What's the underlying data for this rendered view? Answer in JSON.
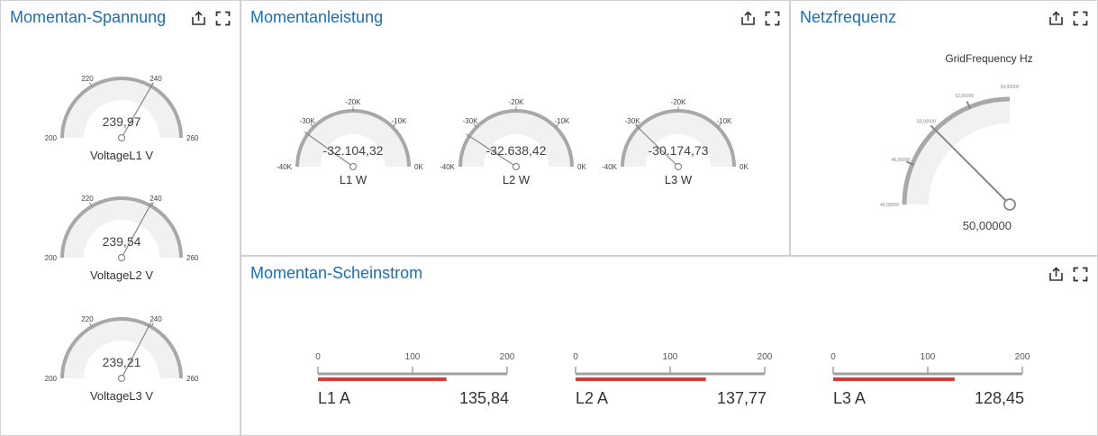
{
  "theme": {
    "title_color": "#1b6fb5",
    "gauge_track": "#f1f1f1",
    "gauge_ring": "#a8a8a8",
    "needle": "#888888",
    "bar_track": "#a0a0a0",
    "bar_value": "#e53535"
  },
  "icons": {
    "export": "export-icon",
    "fullscreen": "fullscreen-icon"
  },
  "voltage": {
    "title": "Momentan-Spannung",
    "gauges": [
      {
        "caption": "VoltageL1 V",
        "value_text": "239,97",
        "value": 239.97,
        "min": 200,
        "max": 260,
        "ticks": [
          "200",
          "220",
          "240",
          "260"
        ]
      },
      {
        "caption": "VoltageL2 V",
        "value_text": "239,54",
        "value": 239.54,
        "min": 200,
        "max": 260,
        "ticks": [
          "200",
          "220",
          "240",
          "260"
        ]
      },
      {
        "caption": "VoltageL3 V",
        "value_text": "239,21",
        "value": 239.21,
        "min": 200,
        "max": 260,
        "ticks": [
          "200",
          "220",
          "240",
          "260"
        ]
      }
    ]
  },
  "power": {
    "title": "Momentanleistung",
    "gauges": [
      {
        "caption": "L1 W",
        "value_text": "-32.104,32",
        "value": -32104.32,
        "min": -40000,
        "max": 0,
        "ticks": [
          "-40K",
          "-30K",
          "-20K",
          "-10K",
          "0K"
        ]
      },
      {
        "caption": "L2 W",
        "value_text": "-32.638,42",
        "value": -32638.42,
        "min": -40000,
        "max": 0,
        "ticks": [
          "-40K",
          "-30K",
          "-20K",
          "-10K",
          "0K"
        ]
      },
      {
        "caption": "L3 W",
        "value_text": "-30.174,73",
        "value": -30174.73,
        "min": -40000,
        "max": 0,
        "ticks": [
          "-40K",
          "-30K",
          "-20K",
          "-10K",
          "0K"
        ]
      }
    ]
  },
  "frequency": {
    "title": "Netzfrequenz",
    "caption": "GridFrequency Hz",
    "value_text": "50,00000",
    "value": 50.0,
    "min": 46,
    "max": 54,
    "ticks": [
      "46,00000",
      "48,00000",
      "50,00000",
      "52,00000",
      "54,00000"
    ]
  },
  "current": {
    "title": "Momentan-Scheinstrom",
    "bars": [
      {
        "caption": "L1 A",
        "value_text": "135,84",
        "value": 135.84,
        "min": 0,
        "max": 200,
        "ticks": [
          "0",
          "100",
          "200"
        ]
      },
      {
        "caption": "L2 A",
        "value_text": "137,77",
        "value": 137.77,
        "min": 0,
        "max": 200,
        "ticks": [
          "0",
          "100",
          "200"
        ]
      },
      {
        "caption": "L3 A",
        "value_text": "128,45",
        "value": 128.45,
        "min": 0,
        "max": 200,
        "ticks": [
          "0",
          "100",
          "200"
        ]
      }
    ]
  }
}
